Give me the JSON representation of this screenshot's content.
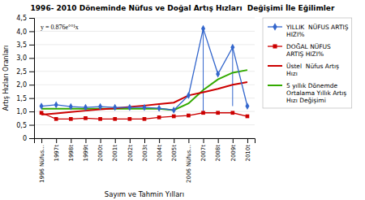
{
  "chart_data": {
    "type": "line",
    "title": "1996- 2010 Döneminde Nüfus ve Doğal Artış Hızları  Değişimi İle Eğilimler",
    "x_label": "Sayım ve Tahmin Yılları",
    "y_label": "Artış Hızları Oranları",
    "categories": [
      "1996 Nüfus...",
      "1997t",
      "1998t",
      "1999t",
      "2000t",
      "2001t",
      "2002t",
      "2003t",
      "2004t",
      "2005t",
      "2006 Nüfus...",
      "2007t",
      "2008t",
      "2009t",
      "2010t"
    ],
    "series": [
      {
        "name": "YILLIK  NÜFUS ARTIŞ\nHIZI%",
        "color": "#3366CC",
        "marker": "diamond",
        "line_style": "solid",
        "values": [
          1.2,
          1.25,
          1.18,
          1.15,
          1.18,
          1.15,
          1.15,
          1.15,
          1.12,
          1.05,
          1.6,
          4.1,
          2.4,
          3.4,
          1.2
        ]
      },
      {
        "name": "DOĞAL NÜFUS\nARTIŞ HIZI%",
        "color": "#CC0000",
        "marker": "square",
        "line_style": "solid",
        "values": [
          0.95,
          0.72,
          0.72,
          0.75,
          0.72,
          0.72,
          0.72,
          0.72,
          0.78,
          0.82,
          0.85,
          0.95,
          0.95,
          0.95,
          0.82
        ]
      },
      {
        "name": "Üstel  Nüfus Artış\nHızı",
        "color": "#CC0000",
        "marker": "none",
        "line_style": "solid",
        "values": [
          0.88,
          0.93,
          0.98,
          1.03,
          1.08,
          1.12,
          1.17,
          1.22,
          1.28,
          1.33,
          1.6,
          1.72,
          1.85,
          2.0,
          2.1
        ]
      },
      {
        "name": "5 yıllık Dönemde\nOrtalama Yıllık Artış\nHızı Değişimi",
        "color": "#33AA00",
        "marker": "none",
        "line_style": "solid",
        "values": [
          1.1,
          1.1,
          1.1,
          1.1,
          1.1,
          1.1,
          1.1,
          1.1,
          1.1,
          1.05,
          1.3,
          1.8,
          2.2,
          2.45,
          2.55
        ]
      }
    ],
    "vertical_lines": [
      {
        "category": "2007t",
        "low": 0.95,
        "high": 4.1,
        "color": "#3366CC"
      },
      {
        "category": "2009t",
        "low": 1.2,
        "high": 3.4,
        "color": "#3366CC"
      }
    ],
    "annotation": "y = 0.876e°°¹x",
    "ylim": [
      0,
      4.5
    ],
    "yticks": [
      0,
      {
        "value": 0.5,
        "label": "0,5"
      },
      {
        "value": 1.0,
        "label": "1,0"
      },
      {
        "value": 1.5,
        "label": "1,5"
      },
      {
        "value": 2.0,
        "label": "2,0"
      },
      {
        "value": 2.5,
        "label": "2,5"
      },
      {
        "value": 3.0,
        "label": "3,0"
      },
      {
        "value": 3.5,
        "label": "3,5"
      },
      {
        "value": 4.0,
        "label": "4,0"
      },
      {
        "value": 4.5,
        "label": "4,5"
      }
    ],
    "grid": true,
    "legend": "right"
  }
}
